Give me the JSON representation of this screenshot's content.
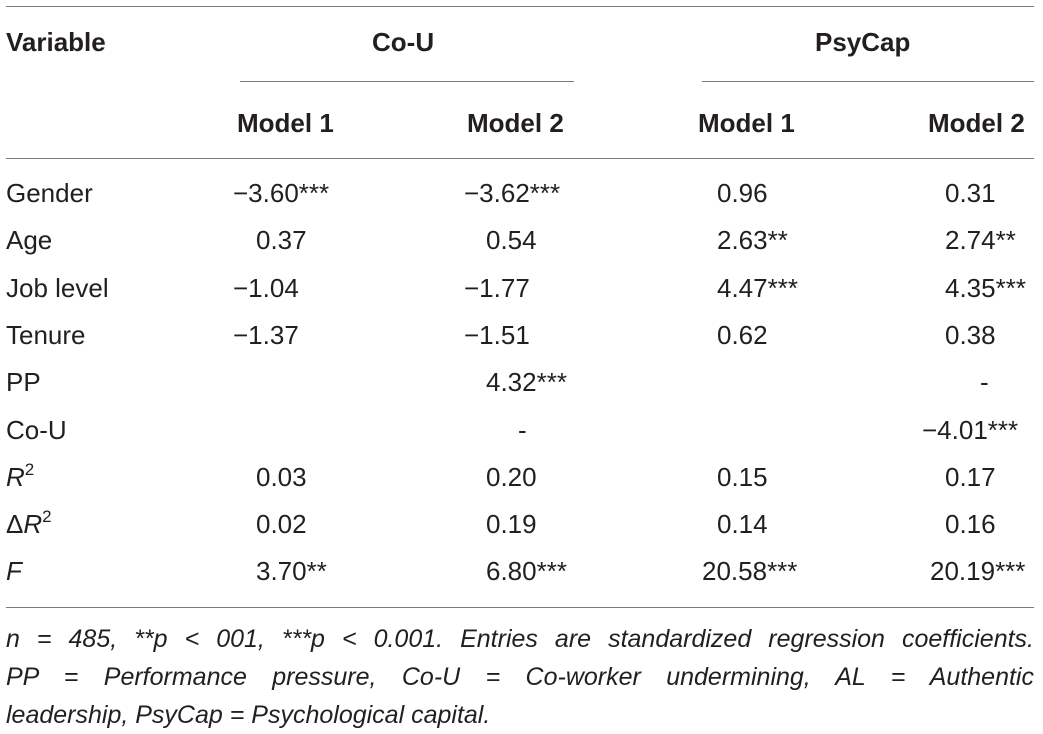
{
  "table": {
    "header": {
      "variable": "Variable",
      "group1": "Co-U",
      "group2": "PsyCap",
      "models": [
        "Model 1",
        "Model 2",
        "Model 1",
        "Model 2"
      ]
    },
    "rows": [
      {
        "label": "Gender",
        "values": [
          "−3.60***",
          "−3.62***",
          "0.96",
          "0.31"
        ]
      },
      {
        "label": "Age",
        "values": [
          "0.37",
          "0.54",
          "2.63**",
          "2.74**"
        ]
      },
      {
        "label": "Job level",
        "values": [
          "−1.04",
          "−1.77",
          "4.47***",
          "4.35***"
        ]
      },
      {
        "label": "Tenure",
        "values": [
          "−1.37",
          "−1.51",
          "0.62",
          "0.38"
        ]
      },
      {
        "label": "PP",
        "values": [
          "",
          "4.32***",
          "",
          "-"
        ]
      },
      {
        "label": "Co-U",
        "values": [
          "",
          "-",
          "",
          "−4.01***"
        ]
      },
      {
        "label_base": "R",
        "label_sup": "2",
        "values": [
          "0.03",
          "0.20",
          "0.15",
          "0.17"
        ]
      },
      {
        "label_prefix": "Δ",
        "label_base": "R",
        "label_sup": "2",
        "values": [
          "0.02",
          "0.19",
          "0.14",
          "0.16"
        ]
      },
      {
        "label_italic": "F",
        "values": [
          "3.70**",
          "6.80***",
          "20.58***",
          "20.19***"
        ]
      }
    ]
  },
  "note": {
    "line1": "n = 485, **p < 001, ***p < 0.001. Entries are standardized regression coefficients.",
    "line2": "PP = Performance pressure, Co-U = Co-worker undermining, AL = Authentic",
    "line3": "leadership, PsyCap = Psychological capital."
  }
}
